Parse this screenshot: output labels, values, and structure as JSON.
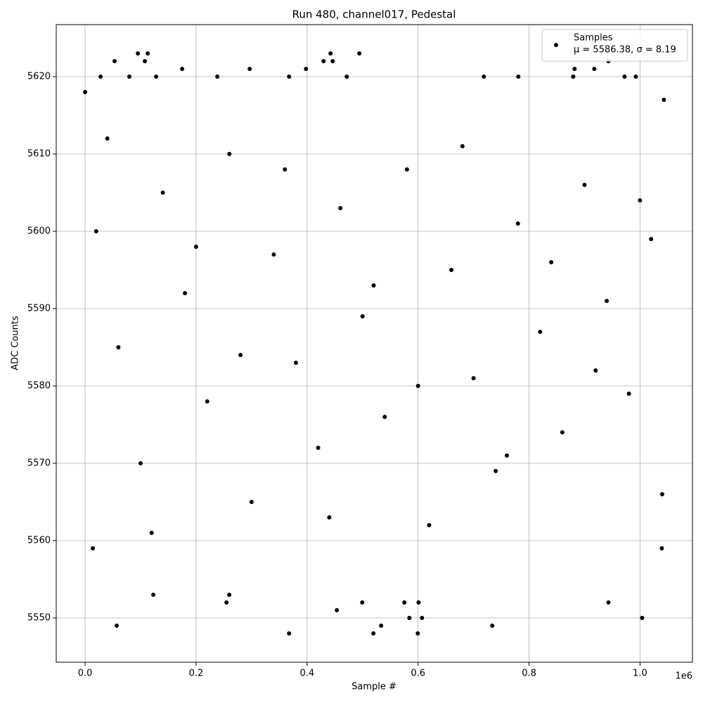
{
  "chart_data": {
    "type": "scatter",
    "title": "Run 480, channel017, Pedestal",
    "xlabel": "Sample #",
    "ylabel": "ADC Counts",
    "x_offset_label": "1e6",
    "legend_note": "μ = 5586.38, σ = 8.19",
    "legend": "upper right",
    "grid": true,
    "xlim": [
      -52000,
      1094500
    ],
    "ylim": [
      5544.27,
      5626.73
    ],
    "xticks": [
      {
        "value": 0,
        "label": "0.0"
      },
      {
        "value": 200000,
        "label": "0.2"
      },
      {
        "value": 400000,
        "label": "0.4"
      },
      {
        "value": 600000,
        "label": "0.6"
      },
      {
        "value": 800000,
        "label": "0.8"
      },
      {
        "value": 1000000,
        "label": "1.0"
      }
    ],
    "yticks": [
      5550,
      5560,
      5570,
      5580,
      5590,
      5600,
      5610,
      5620
    ],
    "series": [
      {
        "name": "Samples",
        "color": "#000000",
        "x": [
          57000,
          367600,
          519600,
          533500,
          599500,
          733800,
          1003800,
          453700,
          584300,
          607100,
          601000,
          575400,
          499400,
          943000,
          122900,
          259800,
          254800,
          95100,
          112800,
          442300,
          494300,
          943000,
          53200,
          107700,
          429700,
          446100,
          174900,
          296600,
          398000,
          882100,
          917600,
          27900,
          79800,
          128000,
          238300,
          367600,
          471500,
          718600,
          780700,
          879600,
          972100,
          992400,
          0,
          1043100,
          1039300,
          13900,
          20000,
          60000,
          100000,
          140000,
          180000,
          220000,
          260000,
          300000,
          340000,
          380000,
          420000,
          460000,
          500000,
          540000,
          580000,
          620000,
          660000,
          700000,
          740000,
          780000,
          820000,
          860000,
          900000,
          940000,
          980000,
          1020000,
          1040000,
          40000,
          120000,
          200000,
          280000,
          360000,
          440000,
          520000,
          600000,
          680000,
          760000,
          840000,
          920000,
          1000000
        ],
        "values": [
          5549,
          5548,
          5548,
          5549,
          5548,
          5549,
          5550,
          5551,
          5550,
          5550,
          5552,
          5552,
          5552,
          5552,
          5553,
          5553,
          5552,
          5623,
          5623,
          5623,
          5623,
          5622,
          5622,
          5622,
          5622,
          5622,
          5621,
          5621,
          5621,
          5621,
          5621,
          5620,
          5620,
          5620,
          5620,
          5620,
          5620,
          5620,
          5620,
          5620,
          5620,
          5620,
          5618,
          5617,
          5559,
          5559,
          5600,
          5585,
          5570,
          5605,
          5592,
          5578,
          5610,
          5565,
          5597,
          5583,
          5572,
          5603,
          5589,
          5576,
          5608,
          5562,
          5595,
          5581,
          5569,
          5601,
          5587,
          5574,
          5606,
          5591,
          5579,
          5599,
          5566,
          5612,
          5561,
          5598,
          5584,
          5608,
          5563,
          5593,
          5580,
          5611,
          5571,
          5596,
          5582,
          5604
        ]
      }
    ]
  }
}
